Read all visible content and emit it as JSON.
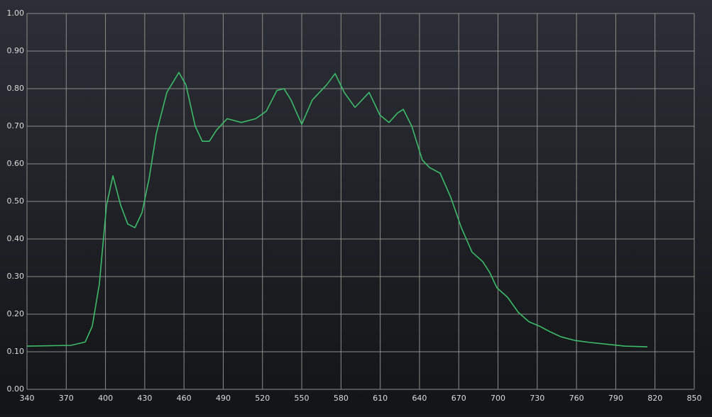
{
  "chart_data": {
    "type": "line",
    "x": [
      340,
      373.6,
      384.5,
      389.9,
      395.3,
      400.8,
      405.7,
      411.6,
      417,
      422.5,
      427.9,
      433.3,
      438.8,
      446.9,
      456.1,
      461.5,
      468.6,
      474,
      479.4,
      484.9,
      493,
      503.9,
      514.8,
      522.9,
      531,
      536.4,
      541.8,
      550,
      558.1,
      569,
      575.5,
      582.5,
      590.7,
      601.5,
      609.7,
      616.7,
      623.2,
      627.6,
      634.1,
      642.2,
      647.7,
      655.8,
      664,
      672,
      680.2,
      688.3,
      693.8,
      699.2,
      707.3,
      715.5,
      723.6,
      731.8,
      739.9,
      748,
      758.9,
      769.7,
      786,
      796.9,
      814.2
    ],
    "series": [
      {
        "color": "#3dba6a",
        "values": [
          0.115,
          0.117,
          0.126,
          0.168,
          0.28,
          0.49,
          0.568,
          0.49,
          0.44,
          0.43,
          0.47,
          0.56,
          0.68,
          0.79,
          0.843,
          0.81,
          0.7,
          0.66,
          0.66,
          0.69,
          0.72,
          0.71,
          0.72,
          0.74,
          0.795,
          0.8,
          0.77,
          0.705,
          0.77,
          0.81,
          0.84,
          0.79,
          0.75,
          0.79,
          0.73,
          0.71,
          0.735,
          0.745,
          0.7,
          0.61,
          0.59,
          0.575,
          0.51,
          0.43,
          0.365,
          0.34,
          0.31,
          0.27,
          0.245,
          0.205,
          0.18,
          0.168,
          0.153,
          0.14,
          0.13,
          0.125,
          0.119,
          0.115,
          0.113
        ]
      }
    ],
    "xlim": [
      340,
      850
    ],
    "xticks": [
      340,
      370,
      400,
      430,
      460,
      490,
      520,
      550,
      580,
      610,
      640,
      670,
      700,
      730,
      760,
      790,
      820,
      850
    ],
    "ylim": [
      0,
      1
    ],
    "yticks": [
      {
        "value": 0,
        "label": "0.00"
      },
      {
        "value": 0.1,
        "label": "0.10"
      },
      {
        "value": 0.2,
        "label": "0.20"
      },
      {
        "value": 0.3,
        "label": "0.30"
      },
      {
        "value": 0.4,
        "label": "0.40"
      },
      {
        "value": 0.5,
        "label": "0.50"
      },
      {
        "value": 0.6,
        "label": "0.60"
      },
      {
        "value": 0.7,
        "label": "0.70"
      },
      {
        "value": 0.8,
        "label": "0.80"
      },
      {
        "value": 0.9,
        "label": "0.90"
      },
      {
        "value": 1,
        "label": "1.00"
      }
    ],
    "grid": true
  }
}
